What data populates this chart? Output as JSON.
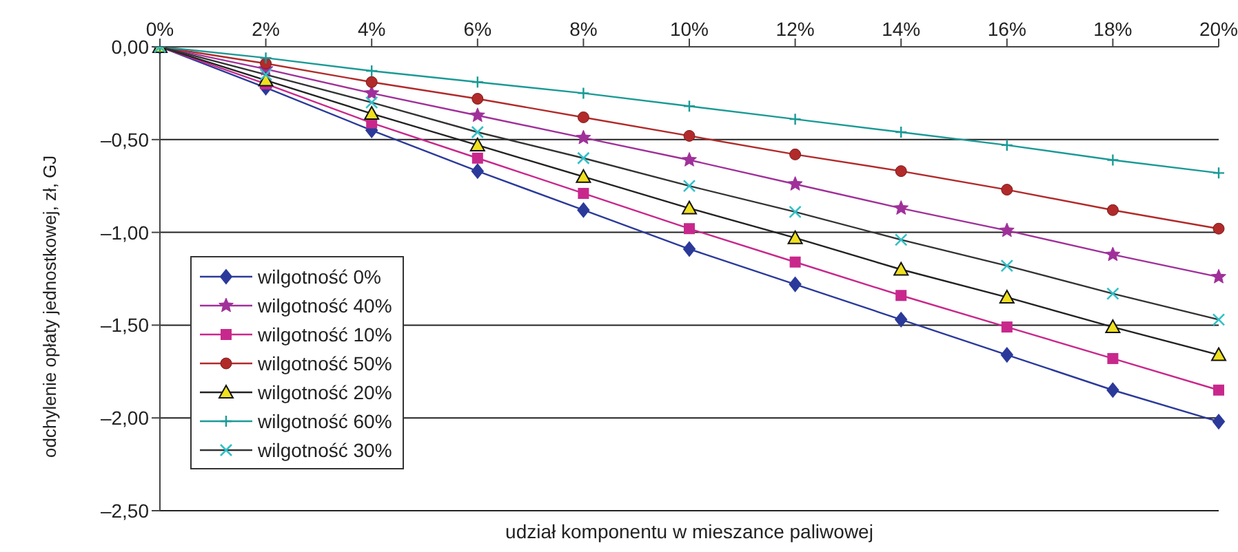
{
  "chart_data": {
    "type": "line",
    "xlabel": "udział komponentu w mieszance paliwowej",
    "ylabel": "odchylenie opłaty jednostkowej, zł, GJ",
    "categories": [
      "0%",
      "2%",
      "4%",
      "6%",
      "8%",
      "10%",
      "12%",
      "14%",
      "16%",
      "18%",
      "20%"
    ],
    "ylim": [
      -2.5,
      0
    ],
    "yticks": [
      {
        "value": 0,
        "label": "0,00"
      },
      {
        "value": -0.5,
        "label": "–0,50"
      },
      {
        "value": -1,
        "label": "–1,00"
      },
      {
        "value": -1.5,
        "label": "–1,50"
      },
      {
        "value": -2,
        "label": "–2,00"
      },
      {
        "value": -2.5,
        "label": "–2,50"
      }
    ],
    "grid": "y",
    "legend": "bottom left",
    "series": [
      {
        "name": "wilgotność 0%",
        "color": "#2b3a9a",
        "marker": "diamond",
        "values": [
          0,
          -0.22,
          -0.45,
          -0.67,
          -0.88,
          -1.09,
          -1.28,
          -1.47,
          -1.66,
          -1.85,
          -2.02
        ]
      },
      {
        "name": "wilgotność 40%",
        "color": "#a0309a",
        "marker": "star",
        "values": [
          0,
          -0.12,
          -0.25,
          -0.37,
          -0.49,
          -0.61,
          -0.74,
          -0.87,
          -0.99,
          -1.12,
          -1.24
        ]
      },
      {
        "name": "wilgotność 10%",
        "color": "#c8288c",
        "marker": "square",
        "values": [
          0,
          -0.2,
          -0.41,
          -0.6,
          -0.79,
          -0.98,
          -1.16,
          -1.34,
          -1.51,
          -1.68,
          -1.85
        ]
      },
      {
        "name": "wilgotność 50%",
        "color": "#b22a2a",
        "marker": "circle",
        "values": [
          0,
          -0.09,
          -0.19,
          -0.28,
          -0.38,
          -0.48,
          -0.58,
          -0.67,
          -0.77,
          -0.88,
          -0.98
        ]
      },
      {
        "name": "wilgotność 20%",
        "color": "#222222",
        "colors": [
          "#f0e020",
          "#f0e020",
          "#f0e020",
          "#f0e020",
          "#f0e020",
          "#f0e020",
          "#f0e020",
          "#f0e020",
          "#f0e020",
          "#f0e020",
          "#f0e020"
        ],
        "marker": "triangle",
        "values": [
          0,
          -0.18,
          -0.36,
          -0.53,
          -0.7,
          -0.87,
          -1.03,
          -1.2,
          -1.35,
          -1.51,
          -1.66
        ]
      },
      {
        "name": "wilgotność 60%",
        "color": "#1a9a96",
        "marker": "cross",
        "values": [
          0,
          -0.06,
          -0.13,
          -0.19,
          -0.25,
          -0.32,
          -0.39,
          -0.46,
          -0.53,
          -0.61,
          -0.68
        ]
      },
      {
        "name": "wilgotność 30%",
        "color": "#333333",
        "colors": [
          "#30c0c8",
          "#30c0c8",
          "#30c0c8",
          "#30c0c8",
          "#30c0c8",
          "#30c0c8",
          "#30c0c8",
          "#30c0c8",
          "#30c0c8",
          "#30c0c8",
          "#30c0c8"
        ],
        "marker": "x",
        "values": [
          0,
          -0.15,
          -0.3,
          -0.46,
          -0.6,
          -0.75,
          -0.89,
          -1.04,
          -1.18,
          -1.33,
          -1.47
        ]
      }
    ]
  }
}
